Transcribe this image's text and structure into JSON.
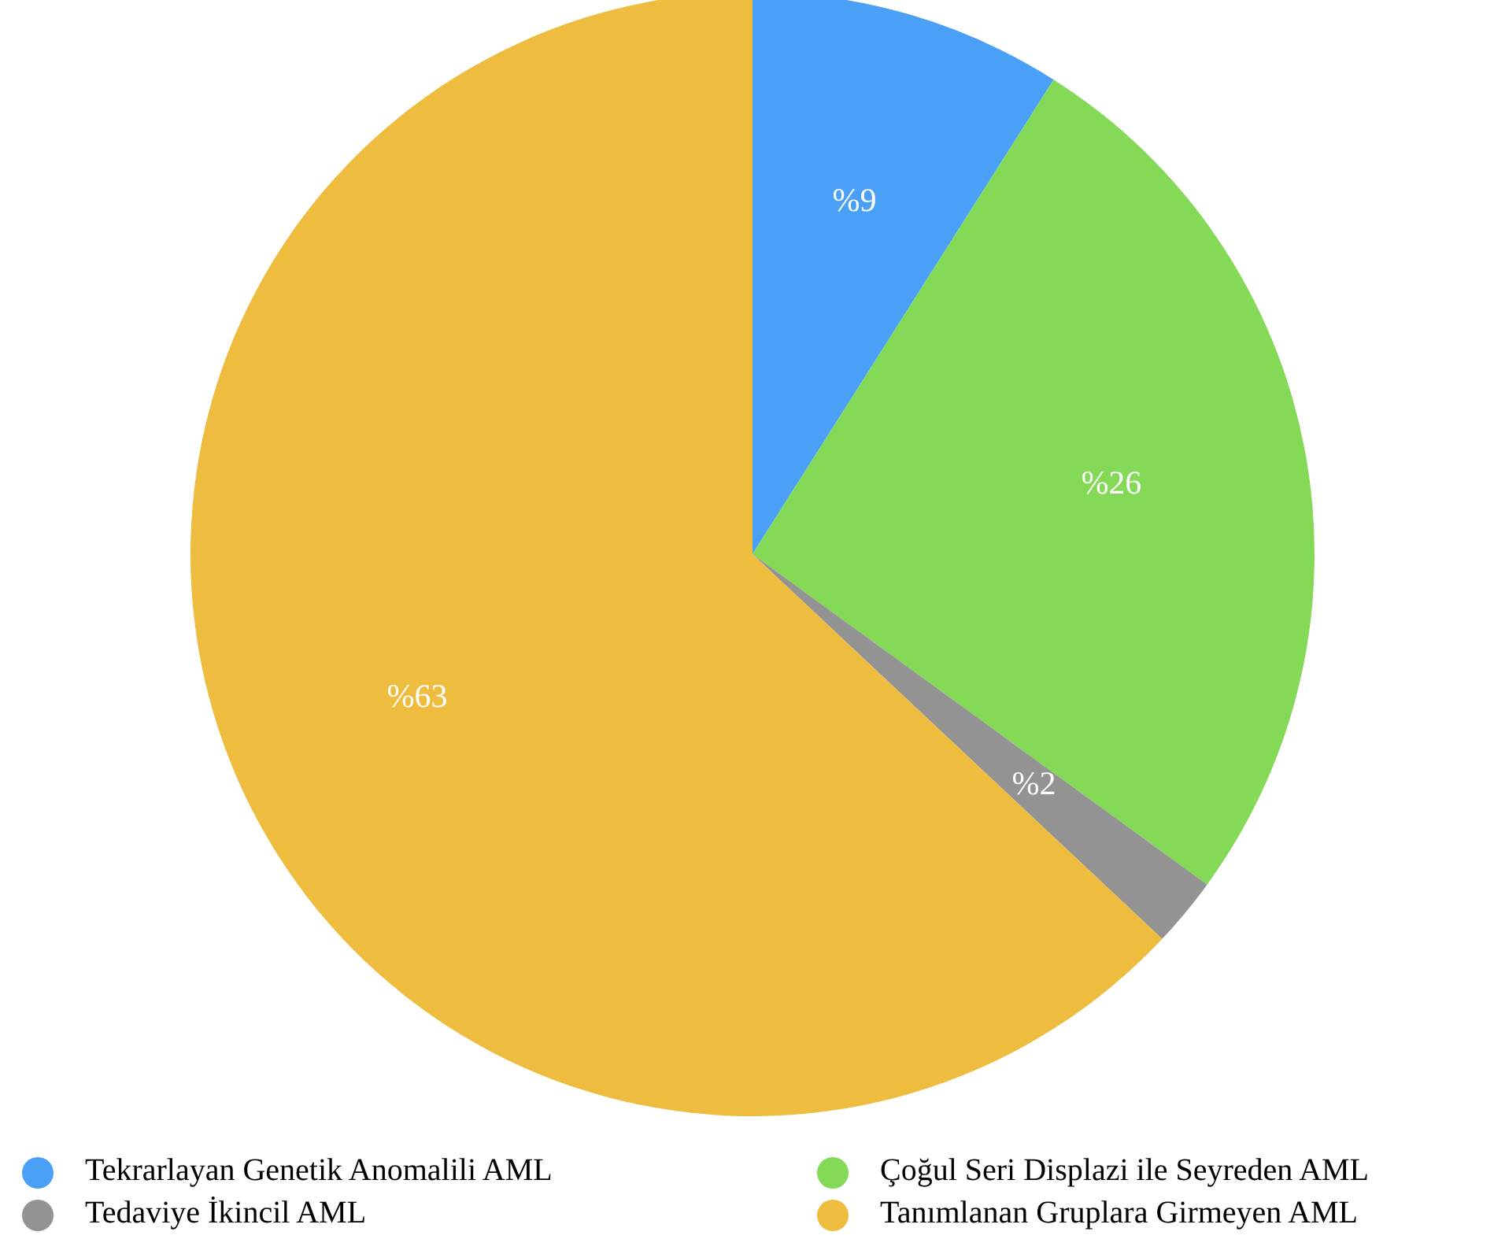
{
  "chart_data": {
    "type": "pie",
    "categories": [
      "Tekrarlayan Genetik Anomalili AML",
      "Çoğul Seri Displazi ile Seyreden AML",
      "Tedaviye İkincil AML",
      "Tanımlanan Gruplara Girmeyen AML"
    ],
    "values": [
      9,
      26,
      2,
      63
    ],
    "colors": [
      "#4aa0f7",
      "#84d957",
      "#939393",
      "#eebd40"
    ],
    "value_labels": [
      "%9",
      "%26",
      "%2",
      "%63"
    ],
    "legend": "bottom"
  }
}
